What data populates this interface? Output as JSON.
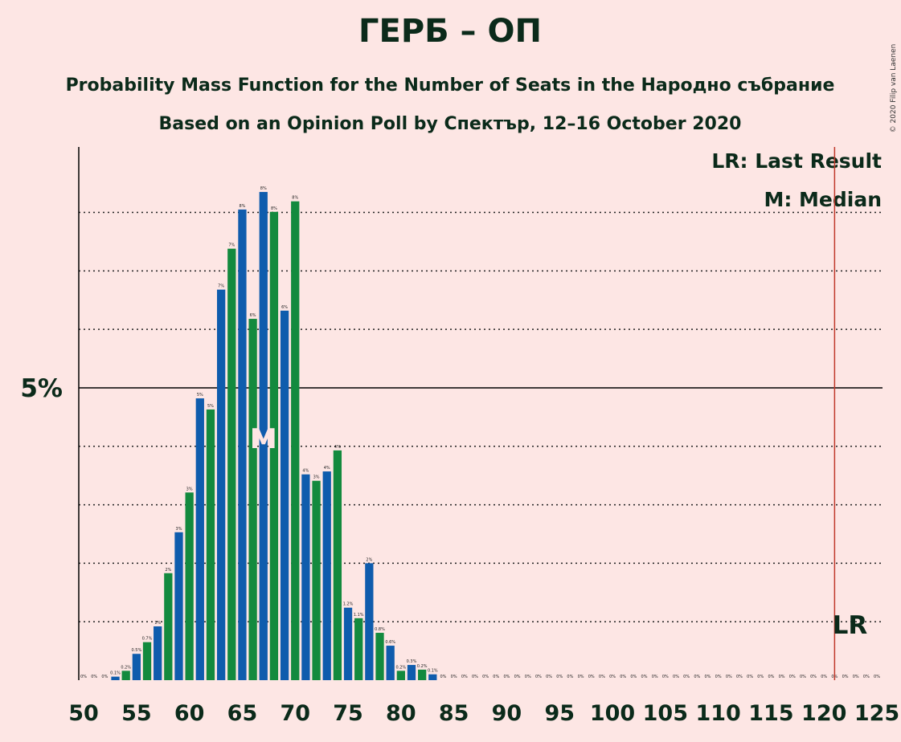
{
  "chart_data": {
    "type": "bar",
    "title": "ГЕРБ – ОП",
    "subtitle": "Probability Mass Function for the Number of Seats in the Народно събрание",
    "subtitle2": "Based on an Opinion Poll by Спектър, 12–16 October 2020",
    "copyright": "© 2020 Filip van Laenen",
    "legend": [
      "LR: Last Result",
      "M: Median"
    ],
    "median": 67,
    "median_label": "M",
    "last_result": 121,
    "last_result_label": "LR",
    "x": [
      50,
      51,
      52,
      53,
      54,
      55,
      56,
      57,
      58,
      59,
      60,
      61,
      62,
      63,
      64,
      65,
      66,
      67,
      68,
      69,
      70,
      71,
      72,
      73,
      74,
      75,
      76,
      77,
      78,
      79,
      80,
      81,
      82,
      83,
      84,
      85,
      86,
      87,
      88,
      89,
      90,
      91,
      92,
      93,
      94,
      95,
      96,
      97,
      98,
      99,
      100,
      101,
      102,
      103,
      104,
      105,
      106,
      107,
      108,
      109,
      110,
      111,
      112,
      113,
      114,
      115,
      116,
      117,
      118,
      119,
      120,
      121,
      122,
      123,
      124,
      125
    ],
    "values": [
      0,
      0,
      0,
      0.06,
      0.16,
      0.45,
      0.65,
      0.92,
      1.83,
      2.53,
      3.21,
      4.82,
      4.63,
      6.68,
      7.38,
      8.05,
      6.18,
      8.35,
      8.01,
      6.32,
      8.19,
      3.52,
      3.41,
      3.57,
      3.93,
      1.24,
      1.06,
      2.0,
      0.81,
      0.59,
      0.16,
      0.26,
      0.18,
      0.1,
      0,
      0,
      0,
      0,
      0,
      0,
      0,
      0,
      0,
      0,
      0,
      0,
      0,
      0,
      0,
      0,
      0,
      0,
      0,
      0,
      0,
      0,
      0,
      0,
      0,
      0,
      0,
      0,
      0,
      0,
      0,
      0,
      0,
      0,
      0,
      0,
      0,
      0,
      0,
      0,
      0,
      0
    ],
    "value_labels": [
      "0%",
      "0%",
      "0%",
      "0.1%",
      "0.2%",
      "0.5%",
      "0.7%",
      "1%",
      "2%",
      "3%",
      "3%",
      "5%",
      "5%",
      "7%",
      "7%",
      "8%",
      "6%",
      "8%",
      "8%",
      "6%",
      "8%",
      "4%",
      "3%",
      "4%",
      "4%",
      "1.2%",
      "1.1%",
      "2%",
      "0.8%",
      "0.6%",
      "0.2%",
      "0.3%",
      "0.2%",
      "0.1%",
      "0%",
      "0%",
      "0%",
      "0%",
      "0%",
      "0%",
      "0%",
      "0%",
      "0%",
      "0%",
      "0%",
      "0%",
      "0%",
      "0%",
      "0%",
      "0%",
      "0%",
      "0%",
      "0%",
      "0%",
      "0%",
      "0%",
      "0%",
      "0%",
      "0%",
      "0%",
      "0%",
      "0%",
      "0%",
      "0%",
      "0%",
      "0%",
      "0%",
      "0%",
      "0%",
      "0%",
      "0%",
      "0%",
      "0%",
      "0%",
      "0%",
      "0%"
    ],
    "colors": [
      "#0f5cad",
      "#138a3e"
    ],
    "last_result_color": "#c0392b",
    "xlim": [
      49.54,
      125.53
    ],
    "xticks": [
      50,
      55,
      60,
      65,
      70,
      75,
      80,
      85,
      90,
      95,
      100,
      105,
      110,
      115,
      120,
      125
    ],
    "ylim": [
      0,
      9.12
    ],
    "yticks": [
      {
        "value": 5,
        "label": "5%"
      }
    ],
    "grid_lines": [
      1,
      2,
      3,
      4,
      6,
      7,
      8
    ]
  }
}
